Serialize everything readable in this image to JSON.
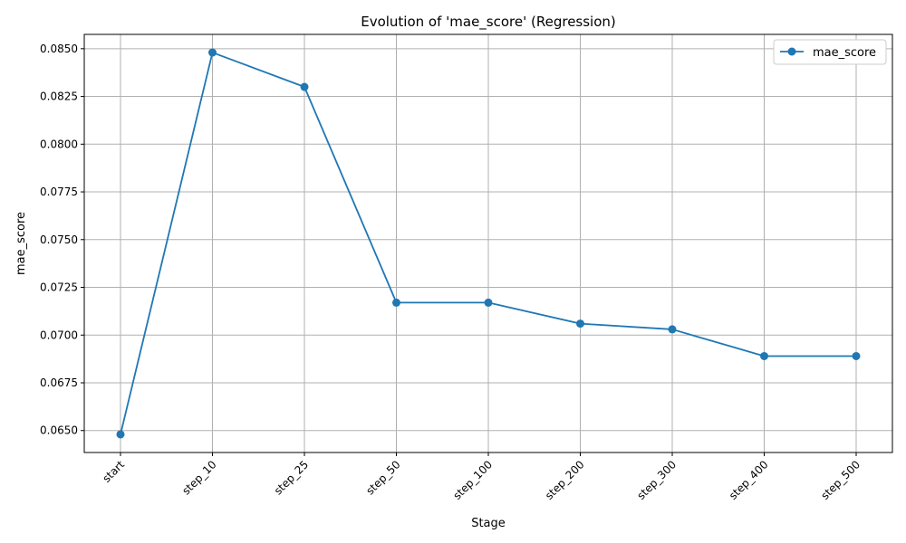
{
  "chart_data": {
    "type": "line",
    "title": "Evolution of 'mae_score' (Regression)",
    "xlabel": "Stage",
    "ylabel": "mae_score",
    "categories": [
      "start",
      "step_10",
      "step_25",
      "step_50",
      "step_100",
      "step_200",
      "step_300",
      "step_400",
      "step_500"
    ],
    "series": [
      {
        "name": "mae_score",
        "values": [
          0.0648,
          0.0848,
          0.083,
          0.0717,
          0.0717,
          0.0706,
          0.0703,
          0.0689,
          0.0689
        ],
        "color": "#1f77b4"
      }
    ],
    "ylim": [
      0.06385,
      0.08575
    ],
    "yticks": [
      "0.0650",
      "0.0675",
      "0.0700",
      "0.0725",
      "0.0750",
      "0.0775",
      "0.0800",
      "0.0825",
      "0.0850"
    ],
    "grid": true,
    "legend_position": "top-right"
  }
}
